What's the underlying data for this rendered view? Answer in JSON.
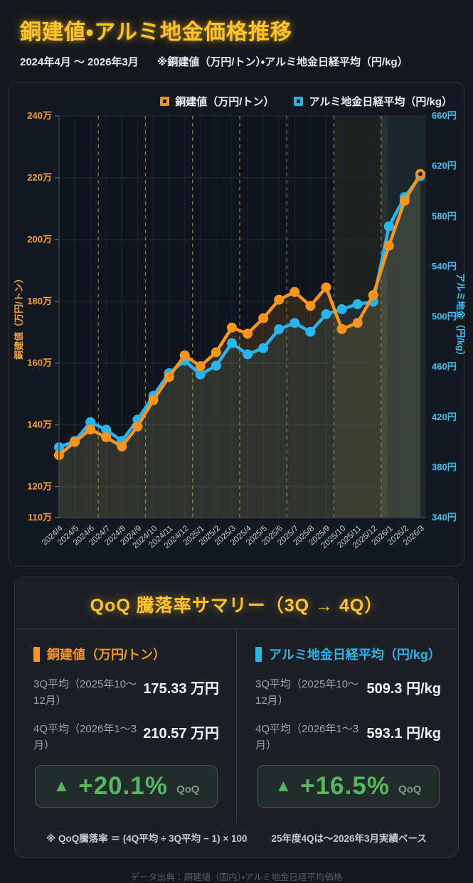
{
  "header": {
    "title": "銅建値・アルミ地金価格推移",
    "subtitle_range": "2024年4月 ～ 2026年3月",
    "subtitle_note": "※銅建値（万円/トン）・アルミ地金日経平均（円/kg）"
  },
  "chart_data": {
    "type": "line",
    "x": [
      "2024/4",
      "2024/5",
      "2024/6",
      "2024/7",
      "2024/8",
      "2024/9",
      "2024/10",
      "2024/11",
      "2024/12",
      "2025/1",
      "2025/2",
      "2025/3",
      "2025/4",
      "2025/5",
      "2025/6",
      "2025/7",
      "2025/8",
      "2025/9",
      "2025/10",
      "2025/11",
      "2025/12",
      "2026/1",
      "2026/2",
      "2026/3"
    ],
    "series": [
      {
        "name": "銅建値（万円/トン）",
        "axis": "left",
        "color": "#f89420",
        "fill": "rgba(246,148,30,0.14)",
        "values": [
          130.2,
          134.5,
          138.5,
          136,
          133,
          139.5,
          148,
          155.5,
          162.5,
          159,
          163.5,
          171.5,
          169.5,
          174.5,
          180.5,
          183,
          178.5,
          184.5,
          171,
          173,
          182,
          198,
          212.5,
          221.2
        ]
      },
      {
        "name": "アルミ地金日経平均（円/kg）",
        "axis": "right",
        "color": "#2ab5ea",
        "fill": "rgba(42,181,234,0.10)",
        "values": [
          396,
          401,
          416,
          410,
          401,
          418,
          437,
          455,
          465,
          454,
          461,
          479,
          470,
          475,
          490,
          495,
          488,
          502,
          506,
          510,
          512,
          572,
          595.3,
          612
        ]
      }
    ],
    "left_axis": {
      "label": "銅建値（万円/トン）",
      "range": [
        110,
        240
      ],
      "ticks": [
        240,
        220,
        200,
        180,
        160,
        140,
        120,
        110
      ],
      "unit": "万",
      "color": "#f2a13c"
    },
    "right_axis": {
      "label": "アルミ地金（円/kg）",
      "range": [
        340,
        660
      ],
      "ticks": [
        660,
        620,
        580,
        540,
        500,
        460,
        420,
        380,
        340
      ],
      "unit": "円",
      "color": "#3cc0f0"
    },
    "quarter_boundaries_after": [
      2,
      5,
      8,
      11,
      14,
      17,
      20
    ],
    "bands": [
      {
        "from_i": 17.5,
        "to_i": 20.5,
        "color": "rgba(230,190,60,0.08)",
        "name": "3Q-highlight"
      },
      {
        "from_i": 20.5,
        "to_i": 23.4,
        "color": "rgba(150,220,185,0.10)",
        "name": "4Q-highlight"
      }
    ],
    "grid": true,
    "legend_position": "top-right",
    "title": "銅建値・アルミ地金価格推移",
    "xlabel": "",
    "ylabel_left": "銅建値（万円/トン）",
    "ylabel_right": "アルミ地金（円/kg）"
  },
  "summary": {
    "title": "QoQ 騰落率サマリー（3Q → 4Q）",
    "copper": {
      "name": "銅建値（万円/トン）",
      "q3_label": "3Q平均（2025年10〜12月）",
      "q3_value": "175.33 万円",
      "q4_label": "4Q平均（2026年1〜3月）",
      "q4_value": "210.57 万円",
      "up_symbol": "▲",
      "delta": "+20.1%",
      "delta_tag": "QoQ"
    },
    "aluminum": {
      "name": "アルミ地金日経平均（円/kg）",
      "q3_label": "3Q平均（2025年10〜12月）",
      "q3_value": "509.3 円/kg",
      "q4_label": "4Q平均（2026年1〜3月）",
      "q4_value": "593.1 円/kg",
      "up_symbol": "▲",
      "delta": "+16.5%",
      "delta_tag": "QoQ"
    },
    "note_formula": "※ QoQ騰落率 ＝ (4Q平均 ÷ 3Q平均 − 1) × 100",
    "note_basis": "25年度4Qは〜2026年3月実績ベース"
  },
  "footer": {
    "source": "データ出典：銅建値（国内）・アルミ地金日経平均価格"
  },
  "colors": {
    "accent_gold": "#ffc42a",
    "copper": "#f89420",
    "aluminum": "#2ab5ea",
    "up_green": "#55b85f"
  }
}
